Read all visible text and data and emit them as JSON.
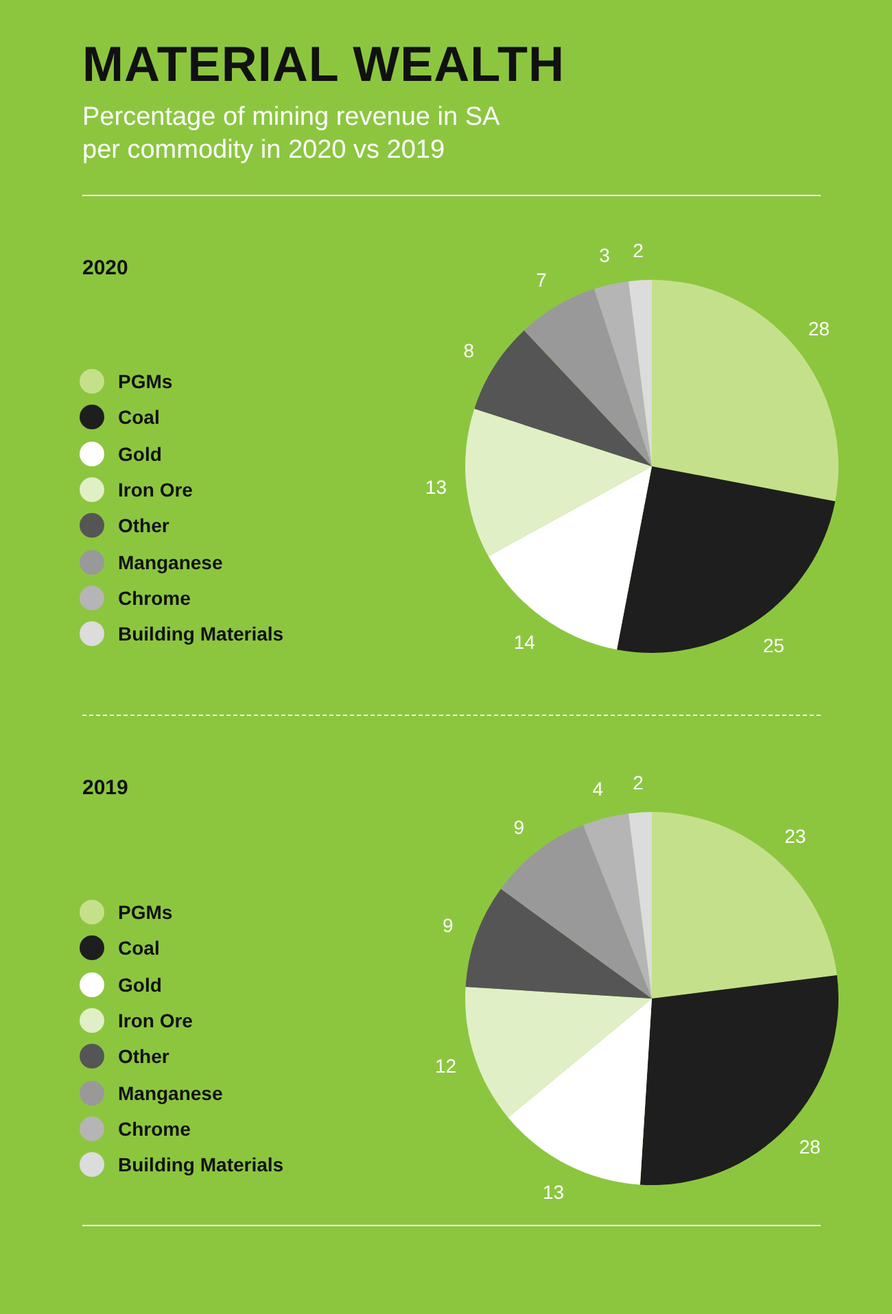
{
  "chart_data": [
    {
      "type": "other",
      "title": "MATERIAL WEALTH",
      "subtitle": "Percentage of mining revenue in SA per commodity in 2020 vs 2019"
    },
    {
      "type": "pie",
      "title": "2020",
      "categories": [
        "PGMs",
        "Coal",
        "Gold",
        "Iron Ore",
        "Other",
        "Manganese",
        "Chrome",
        "Building Materials"
      ],
      "values": [
        28,
        25,
        14,
        13,
        8,
        7,
        3,
        2
      ],
      "colors": [
        "#c5e08a",
        "#1e1e1e",
        "#ffffff",
        "#e0efc6",
        "#555555",
        "#999999",
        "#b5b5b5",
        "#dcdcdc"
      ],
      "data_labels": true,
      "legend": "left"
    },
    {
      "type": "pie",
      "title": "2019",
      "categories": [
        "PGMs",
        "Coal",
        "Gold",
        "Iron Ore",
        "Other",
        "Manganese",
        "Chrome",
        "Building Materials"
      ],
      "values": [
        23,
        28,
        13,
        12,
        9,
        9,
        4,
        2
      ],
      "colors": [
        "#c5e08a",
        "#1e1e1e",
        "#ffffff",
        "#e0efc6",
        "#555555",
        "#999999",
        "#b5b5b5",
        "#dcdcdc"
      ],
      "data_labels": true,
      "legend": "left"
    }
  ]
}
